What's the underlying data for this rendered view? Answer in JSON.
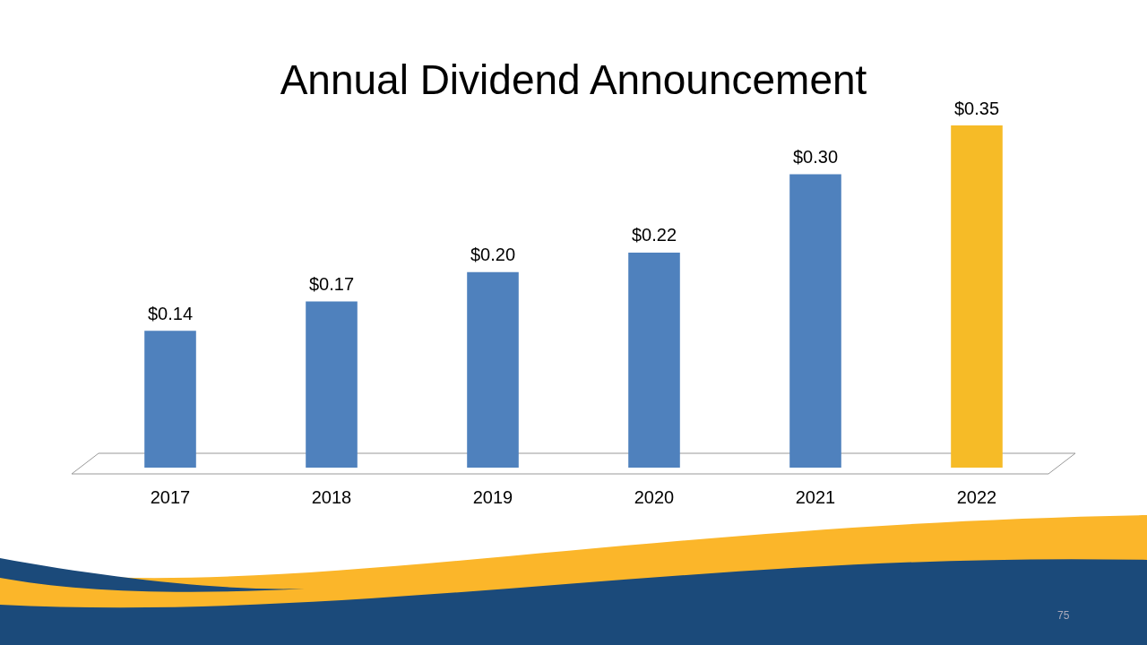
{
  "chart_data": {
    "type": "bar",
    "title": "Annual Dividend Announcement",
    "categories": [
      "2017",
      "2018",
      "2019",
      "2020",
      "2021",
      "2022"
    ],
    "values": [
      0.14,
      0.17,
      0.2,
      0.22,
      0.3,
      0.35
    ],
    "colors": [
      "#4f81bd",
      "#4f81bd",
      "#4f81bd",
      "#4f81bd",
      "#4f81bd",
      "#f6bb27"
    ],
    "value_labels": [
      "$0.14",
      "$0.17",
      "$0.20",
      "$0.22",
      "$0.30",
      "$0.35"
    ],
    "tick_labels": "x",
    "grid": false,
    "legend": false,
    "annotations": [
      "75"
    ]
  }
}
